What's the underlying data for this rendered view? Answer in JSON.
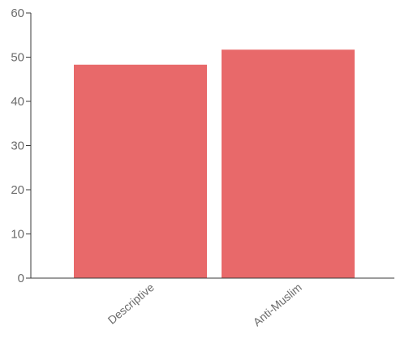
{
  "chart_data": {
    "type": "bar",
    "title": "",
    "xlabel": "",
    "ylabel": "",
    "categories": [
      "Descriptive",
      "Anti-Muslim"
    ],
    "values": [
      48.3,
      51.7
    ],
    "ylim": [
      0,
      60
    ],
    "yticks": [
      0,
      10,
      20,
      30,
      40,
      50,
      60
    ],
    "grid": false,
    "legend": "none",
    "bar_color": "#e8696a",
    "axis_color": "#3a3a3a",
    "label_color": "#6b6b6b"
  }
}
